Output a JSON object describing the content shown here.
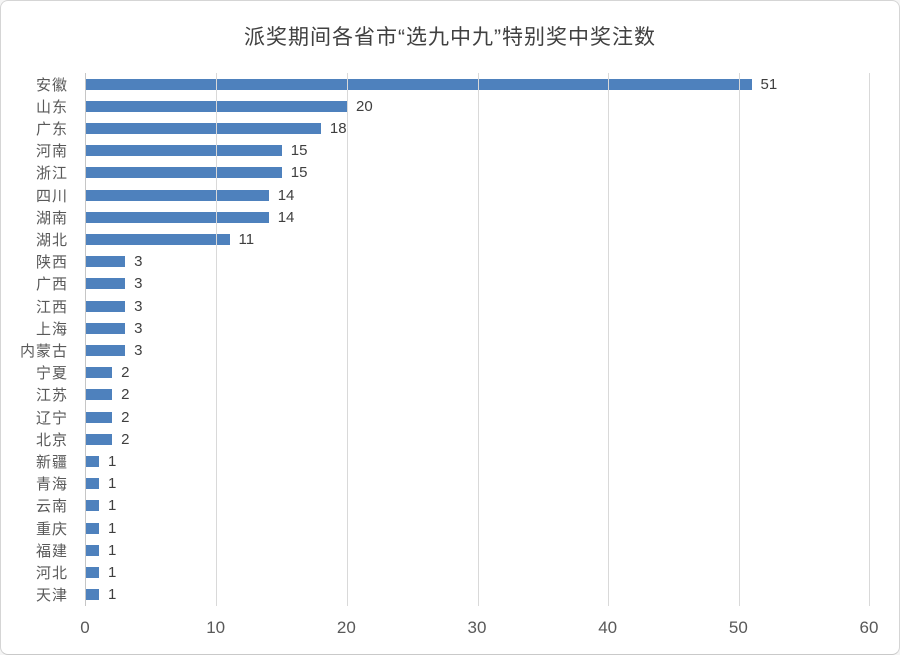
{
  "chart_data": {
    "type": "bar",
    "orientation": "horizontal",
    "title": "派奖期间各省市“选九中九”特别奖中奖注数",
    "categories": [
      "安徽",
      "山东",
      "广东",
      "河南",
      "浙江",
      "四川",
      "湖南",
      "湖北",
      "陕西",
      "广西",
      "江西",
      "上海",
      "内蒙古",
      "宁夏",
      "江苏",
      "辽宁",
      "北京",
      "新疆",
      "青海",
      "云南",
      "重庆",
      "福建",
      "河北",
      "天津"
    ],
    "values": [
      51,
      20,
      18,
      15,
      15,
      14,
      14,
      11,
      3,
      3,
      3,
      3,
      3,
      2,
      2,
      2,
      2,
      1,
      1,
      1,
      1,
      1,
      1,
      1
    ],
    "xlabel": "",
    "ylabel": "",
    "xlim": [
      0,
      60
    ],
    "xticks": [
      0,
      10,
      20,
      30,
      40,
      50,
      60
    ],
    "grid": "vertical",
    "legend": "none",
    "data_labels": true
  },
  "colors": {
    "bar": "#4E81BD",
    "gridline": "#D9D9D9",
    "axis_line": "#C6C6C6",
    "title_text": "#404040",
    "category_text": "#595959",
    "value_text": "#3F3F3F",
    "background": "#FFFFFF",
    "card_border": "#D5D5D5"
  }
}
